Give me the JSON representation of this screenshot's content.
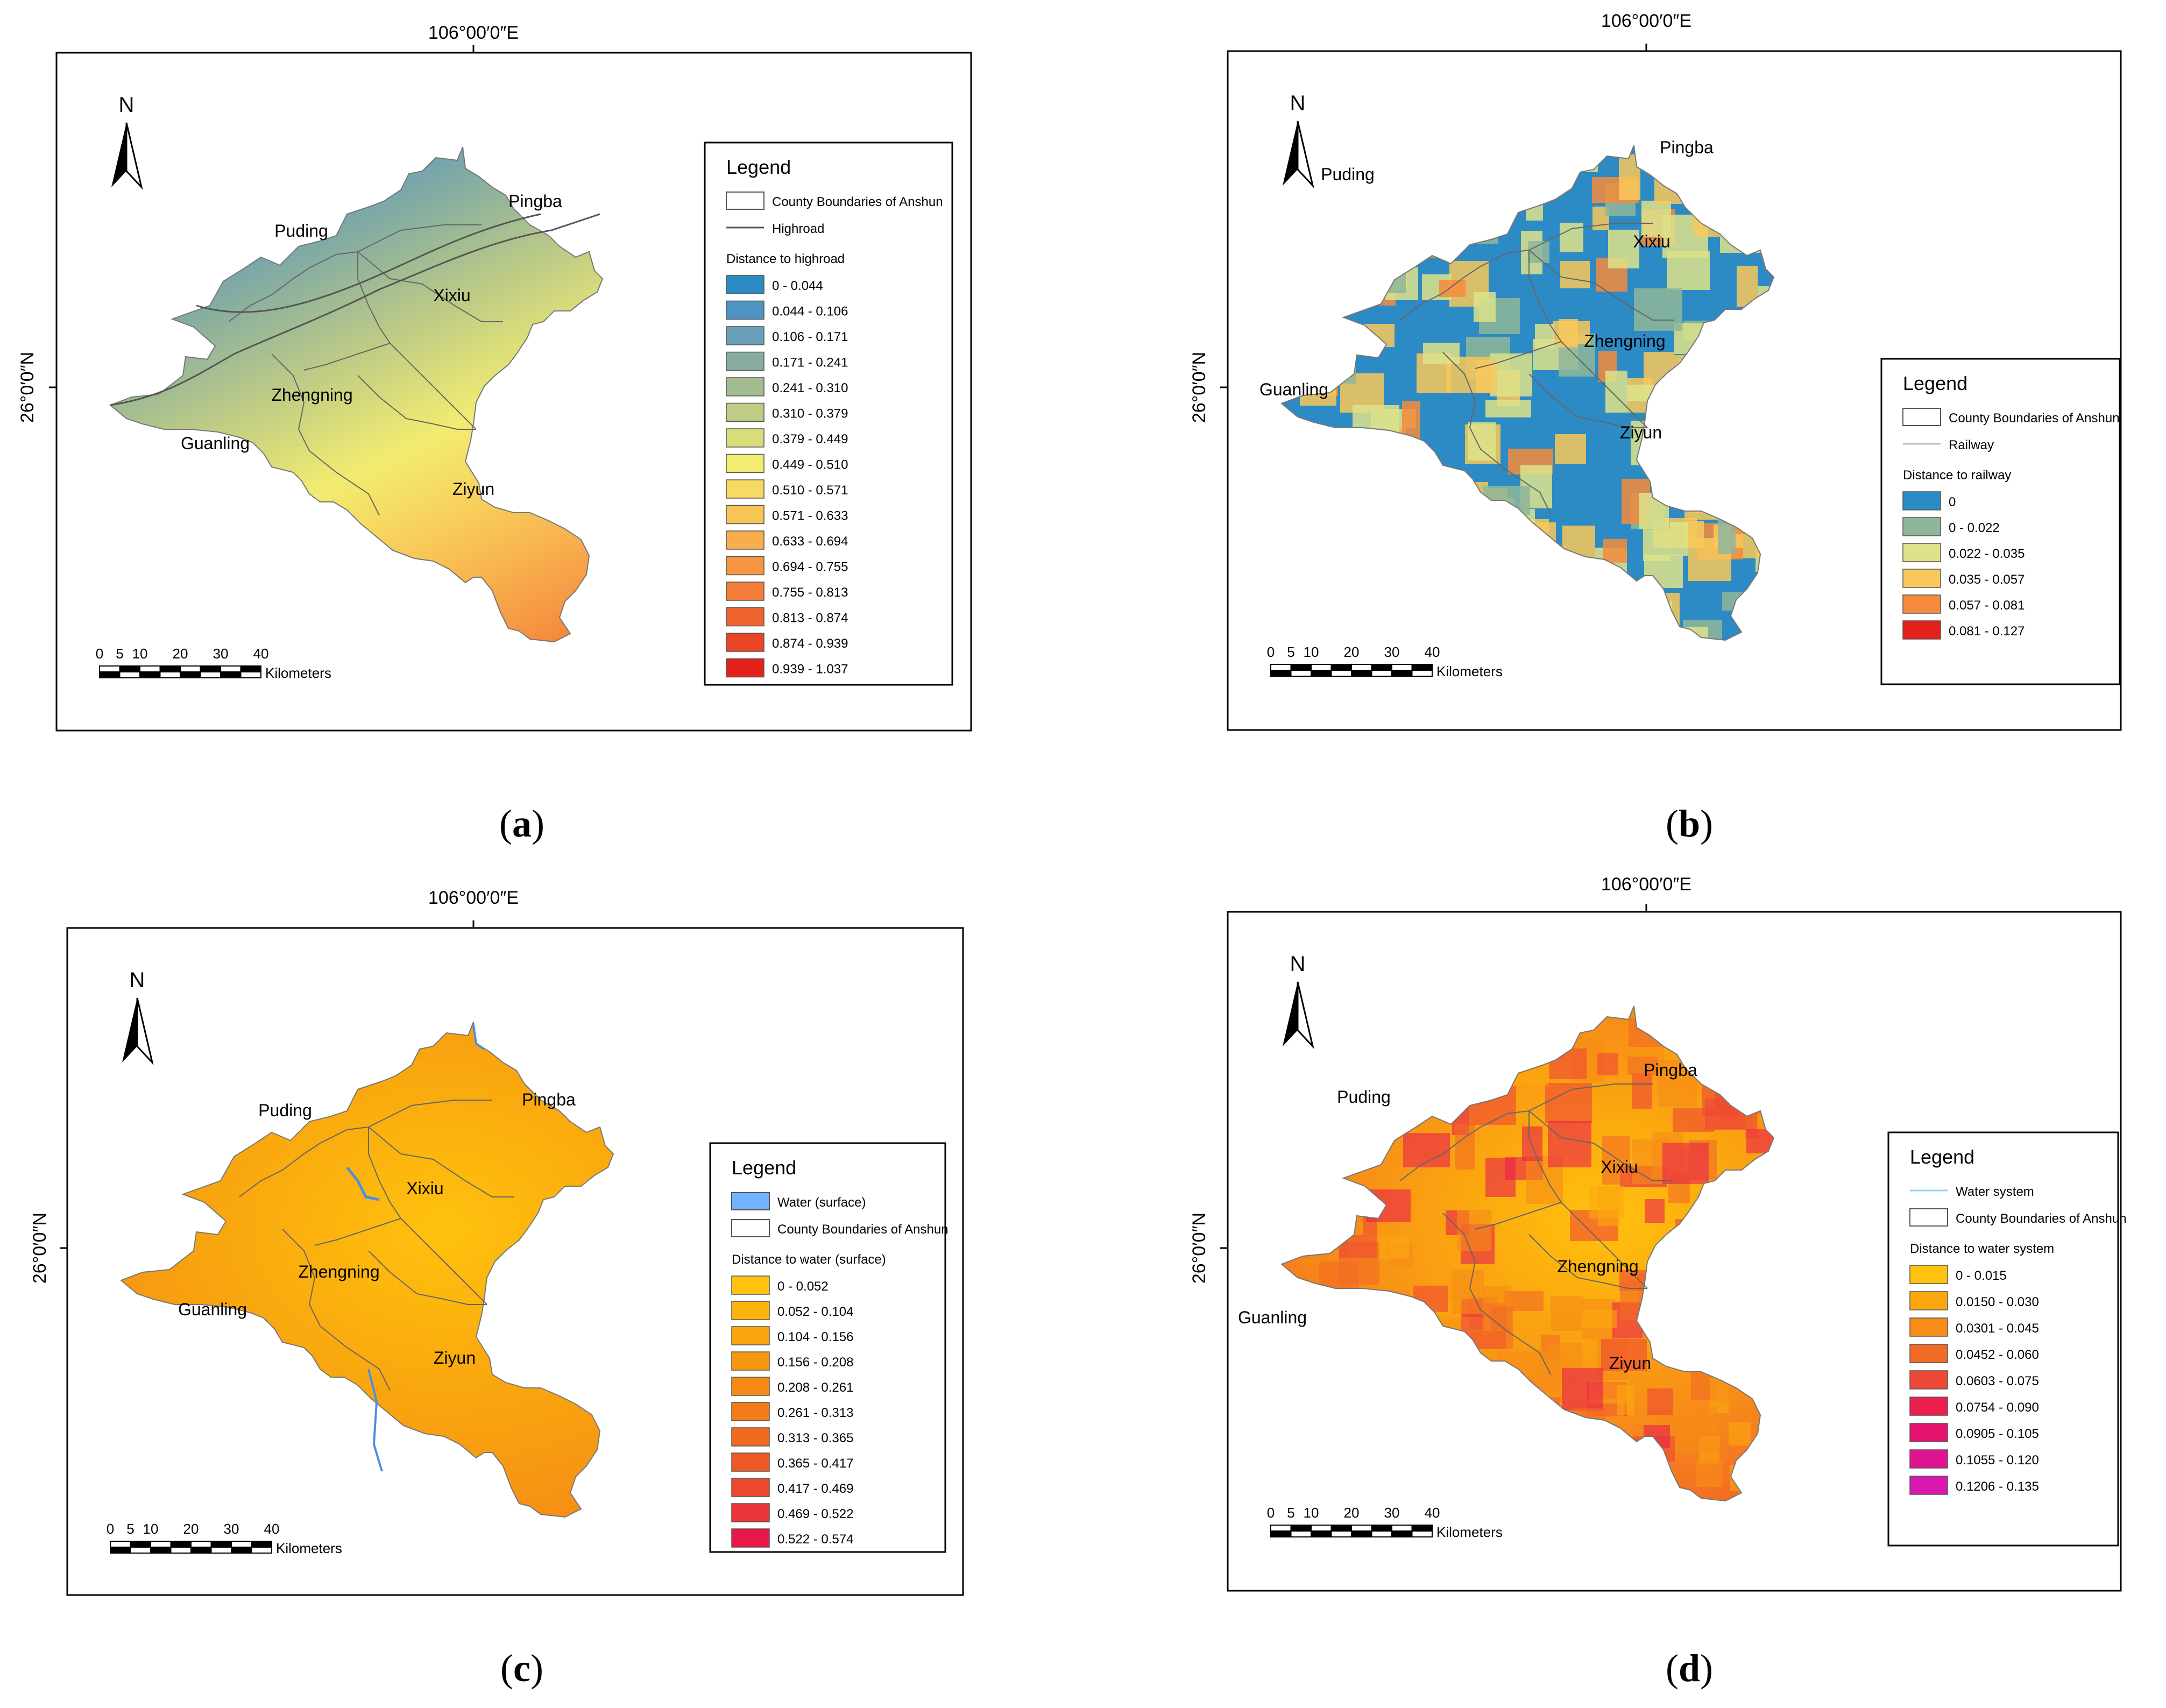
{
  "panels": [
    {
      "id": "a",
      "caption": "a",
      "lon_label": "106°00′0″E",
      "lat_label": "26°0′0″N",
      "north_label": "N",
      "scalebar": {
        "ticks": [
          "0",
          "5",
          "10",
          "20",
          "30",
          "40"
        ],
        "unit": "Kilometers"
      },
      "counties": [
        "Puding",
        "Pingba",
        "Xixiu",
        "Zhengning",
        "Guanling",
        "Ziyun"
      ],
      "legend": {
        "title": "Legend",
        "symbols": [
          {
            "label": "County Boundaries of Anshun",
            "kind": "box"
          },
          {
            "label": "Highroad",
            "kind": "line",
            "color": "#555555"
          }
        ],
        "field_title": "Distance to highroad",
        "classes": [
          {
            "label": "0 - 0.044",
            "color": "#2c8ac4"
          },
          {
            "label": "0.044 - 0.106",
            "color": "#4d94c2"
          },
          {
            "label": "0.106 - 0.171",
            "color": "#6a9fb8"
          },
          {
            "label": "0.171 - 0.241",
            "color": "#86ad9f"
          },
          {
            "label": "0.241 - 0.310",
            "color": "#a3bd92"
          },
          {
            "label": "0.310 - 0.379",
            "color": "#bfcc85"
          },
          {
            "label": "0.379 - 0.449",
            "color": "#d9dc7a"
          },
          {
            "label": "0.449 - 0.510",
            "color": "#f2ec70"
          },
          {
            "label": "0.510 - 0.571",
            "color": "#f6da62"
          },
          {
            "label": "0.571 - 0.633",
            "color": "#f8c557"
          },
          {
            "label": "0.633 - 0.694",
            "color": "#f8ae4d"
          },
          {
            "label": "0.694 - 0.755",
            "color": "#f69643"
          },
          {
            "label": "0.755 - 0.813",
            "color": "#f37d39"
          },
          {
            "label": "0.813 - 0.874",
            "color": "#ef632f"
          },
          {
            "label": "0.874 - 0.939",
            "color": "#ea4527"
          },
          {
            "label": "0.939 - 1.037",
            "color": "#e4201d"
          }
        ]
      }
    },
    {
      "id": "b",
      "caption": "b",
      "lon_label": "106°00′0″E",
      "lat_label": "26°0′0″N",
      "north_label": "N",
      "scalebar": {
        "ticks": [
          "0",
          "5",
          "10",
          "20",
          "30",
          "40"
        ],
        "unit": "Kilometers"
      },
      "counties": [
        "Puding",
        "Pingba",
        "Xixiu",
        "Zhengning",
        "Guanling",
        "Ziyun"
      ],
      "legend": {
        "title": "Legend",
        "symbols": [
          {
            "label": "County Boundaries of Anshun",
            "kind": "box"
          },
          {
            "label": "Railway",
            "kind": "line",
            "color": "#bdbdbd"
          }
        ],
        "field_title": "Distance to railway",
        "classes": [
          {
            "label": "0",
            "color": "#2c8ac4"
          },
          {
            "label": "0 - 0.022",
            "color": "#8fb69a"
          },
          {
            "label": "0.022 - 0.035",
            "color": "#dde28a"
          },
          {
            "label": "0.035 - 0.057",
            "color": "#f8c85a"
          },
          {
            "label": "0.057 - 0.081",
            "color": "#f58b3c"
          },
          {
            "label": "0.081 - 0.127",
            "color": "#e4201d"
          }
        ]
      }
    },
    {
      "id": "c",
      "caption": "c",
      "lon_label": "106°00′0″E",
      "lat_label": "26°0′0″N",
      "north_label": "N",
      "scalebar": {
        "ticks": [
          "0",
          "5",
          "10",
          "20",
          "30",
          "40"
        ],
        "unit": "Kilometers"
      },
      "counties": [
        "Puding",
        "Pingba",
        "Xixiu",
        "Zhengning",
        "Guanling",
        "Ziyun"
      ],
      "legend": {
        "title": "Legend",
        "symbols": [
          {
            "label": "Water (surface)",
            "kind": "fill",
            "color": "#73b2ff"
          },
          {
            "label": "County Boundaries of Anshun",
            "kind": "box"
          }
        ],
        "field_title": "Distance to water (surface)",
        "classes": [
          {
            "label": "0 - 0.052",
            "color": "#ffc20e"
          },
          {
            "label": "0.052 - 0.104",
            "color": "#fcb40d"
          },
          {
            "label": "0.104 - 0.156",
            "color": "#f9a60f"
          },
          {
            "label": "0.156 - 0.208",
            "color": "#f79812"
          },
          {
            "label": "0.208 - 0.261",
            "color": "#f58a16"
          },
          {
            "label": "0.261 - 0.313",
            "color": "#f27b1a"
          },
          {
            "label": "0.313 - 0.365",
            "color": "#f06b1f"
          },
          {
            "label": "0.365 - 0.417",
            "color": "#ee5a26"
          },
          {
            "label": "0.417 - 0.469",
            "color": "#ec482e"
          },
          {
            "label": "0.469 - 0.522",
            "color": "#ea3439"
          },
          {
            "label": "0.522 - 0.574",
            "color": "#e8174a"
          }
        ]
      }
    },
    {
      "id": "d",
      "caption": "d",
      "lon_label": "106°00′0″E",
      "lat_label": "26°0′0″N",
      "north_label": "N",
      "scalebar": {
        "ticks": [
          "0",
          "5",
          "10",
          "20",
          "30",
          "40"
        ],
        "unit": "Kilometers"
      },
      "counties": [
        "Puding",
        "Pingba",
        "Xixiu",
        "Zhengning",
        "Guanling",
        "Ziyun"
      ],
      "legend": {
        "title": "Legend",
        "symbols": [
          {
            "label": "Water system",
            "kind": "line",
            "color": "#8fd3e8"
          },
          {
            "label": "County Boundaries of Anshun",
            "kind": "box"
          }
        ],
        "field_title": "Distance to water system",
        "classes": [
          {
            "label": "0 - 0.015",
            "color": "#ffc20e"
          },
          {
            "label": "0.0150 - 0.030",
            "color": "#fba80f"
          },
          {
            "label": "0.0301 - 0.045",
            "color": "#f78c18"
          },
          {
            "label": "0.0452 - 0.060",
            "color": "#f26b25"
          },
          {
            "label": "0.0603 - 0.075",
            "color": "#ee4836"
          },
          {
            "label": "0.0754 - 0.090",
            "color": "#ea1f4c"
          },
          {
            "label": "0.0905 - 0.105",
            "color": "#e5126e"
          },
          {
            "label": "0.1055 - 0.120",
            "color": "#e01490"
          },
          {
            "label": "0.1206 - 0.135",
            "color": "#d918b0"
          }
        ]
      }
    }
  ]
}
